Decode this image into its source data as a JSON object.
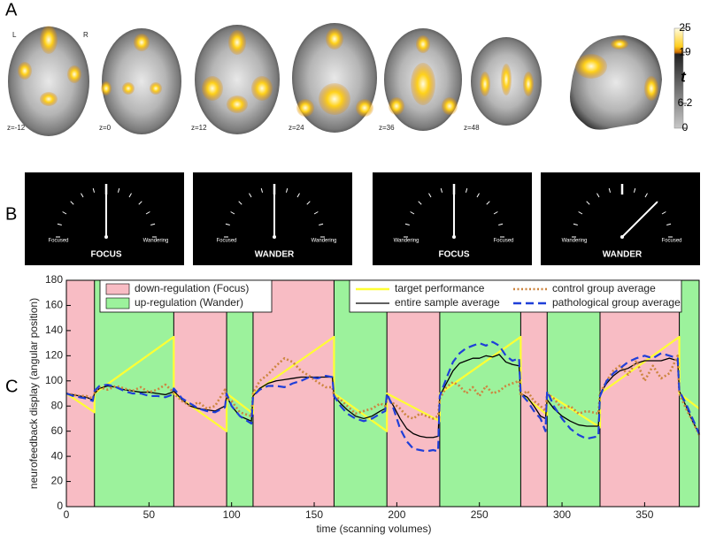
{
  "panels": {
    "a": {
      "label": "A",
      "left": "L",
      "right": "R",
      "slices": [
        "z=-12",
        "z=0",
        "z=12",
        "z=24",
        "z=36",
        "z=48"
      ],
      "colorbar": {
        "label": "t",
        "lim": [
          0,
          25
        ],
        "ticks": [
          25,
          19,
          6.2,
          0
        ]
      }
    },
    "b": {
      "label": "B",
      "gauges": [
        {
          "left": "Focused",
          "right": "Wandering",
          "state": "FOCUS"
        },
        {
          "left": "Focused",
          "right": "Wandering",
          "state": "WANDER"
        },
        {
          "left": "Wandering",
          "right": "Focused",
          "state": "FOCUS"
        },
        {
          "left": "Wandering",
          "right": "Focused",
          "state": "WANDER"
        }
      ]
    },
    "c": {
      "label": "C"
    }
  },
  "chart_data": {
    "type": "line",
    "xlabel": "time (scanning volumes)",
    "ylabel": "neurofeedback display (angular position)",
    "xlim": [
      0,
      383
    ],
    "ylim": [
      0,
      180
    ],
    "xticks": [
      0,
      50,
      100,
      150,
      200,
      250,
      300,
      350
    ],
    "yticks": [
      0,
      20,
      40,
      60,
      80,
      100,
      120,
      140,
      160,
      180
    ],
    "shading": [
      {
        "name": "down-regulation (Focus)",
        "color": "#f8bcc4",
        "spans": [
          [
            0,
            17
          ],
          [
            65,
            97
          ],
          [
            113,
            162
          ],
          [
            194,
            226
          ],
          [
            275,
            291
          ],
          [
            323,
            371
          ]
        ]
      },
      {
        "name": "up-regulation (Wander)",
        "color": "#9cf29c",
        "spans": [
          [
            17,
            65
          ],
          [
            97,
            113
          ],
          [
            162,
            194
          ],
          [
            226,
            275
          ],
          [
            291,
            323
          ],
          [
            371,
            383
          ]
        ]
      }
    ],
    "series": [
      {
        "name": "target performance",
        "color": "#ffff33",
        "line_style": "solid",
        "x": [
          0,
          17,
          17,
          65,
          65,
          97,
          97,
          113,
          113,
          162,
          162,
          194,
          194,
          226,
          226,
          275,
          275,
          291,
          291,
          323,
          323,
          371,
          371,
          383
        ],
        "values": [
          90,
          75,
          90,
          135,
          90,
          60,
          90,
          74,
          90,
          135,
          90,
          60,
          90,
          68,
          90,
          135,
          90,
          73,
          90,
          63,
          90,
          135,
          90,
          78
        ]
      },
      {
        "name": "entire sample average",
        "color": "#000000",
        "line_style": "solid",
        "x": [
          0,
          4,
          8,
          12,
          16,
          17,
          20,
          25,
          30,
          35,
          40,
          45,
          50,
          55,
          60,
          64,
          65,
          70,
          75,
          80,
          85,
          90,
          96,
          97,
          100,
          105,
          112,
          113,
          117,
          122,
          127,
          132,
          137,
          142,
          147,
          152,
          157,
          161,
          162,
          166,
          170,
          175,
          180,
          185,
          190,
          193,
          194,
          198,
          202,
          206,
          210,
          214,
          218,
          222,
          225,
          226,
          230,
          234,
          238,
          242,
          246,
          250,
          254,
          258,
          262,
          266,
          270,
          274,
          275,
          279,
          283,
          287,
          290,
          291,
          295,
          300,
          305,
          310,
          315,
          322,
          323,
          327,
          331,
          335,
          340,
          345,
          350,
          355,
          360,
          365,
          370,
          371,
          375,
          379,
          383
        ],
        "values": [
          90,
          89,
          88,
          87,
          85,
          90,
          94,
          96,
          95,
          93,
          92,
          91,
          91,
          90,
          89,
          91,
          92,
          85,
          80,
          78,
          77,
          76,
          80,
          88,
          80,
          72,
          68,
          88,
          94,
          98,
          100,
          101,
          102,
          103,
          103,
          103,
          103,
          103,
          88,
          82,
          77,
          72,
          70,
          72,
          76,
          78,
          89,
          80,
          70,
          62,
          58,
          56,
          55,
          55,
          56,
          88,
          98,
          108,
          114,
          116,
          118,
          118,
          120,
          119,
          121,
          115,
          113,
          112,
          90,
          87,
          80,
          72,
          70,
          85,
          78,
          72,
          68,
          65,
          64,
          64,
          90,
          98,
          104,
          108,
          110,
          114,
          116,
          116,
          116,
          118,
          116,
          92,
          80,
          68,
          58
        ]
      },
      {
        "name": "control group average",
        "color": "#cd853f",
        "line_style": "dotted",
        "x": [
          0,
          4,
          8,
          12,
          16,
          17,
          20,
          25,
          30,
          35,
          40,
          45,
          50,
          55,
          60,
          64,
          65,
          70,
          75,
          80,
          85,
          90,
          96,
          97,
          100,
          105,
          112,
          113,
          117,
          122,
          127,
          132,
          137,
          142,
          147,
          152,
          157,
          161,
          162,
          166,
          170,
          175,
          180,
          185,
          190,
          193,
          194,
          198,
          202,
          206,
          210,
          214,
          218,
          222,
          225,
          226,
          230,
          234,
          238,
          242,
          246,
          250,
          254,
          258,
          262,
          266,
          270,
          274,
          275,
          279,
          283,
          287,
          290,
          291,
          295,
          300,
          305,
          310,
          315,
          322,
          323,
          327,
          331,
          335,
          340,
          345,
          350,
          355,
          360,
          365,
          370,
          371,
          375,
          379,
          383
        ],
        "values": [
          90,
          89,
          88,
          88,
          86,
          90,
          95,
          93,
          96,
          94,
          92,
          95,
          91,
          93,
          97,
          92,
          90,
          84,
          80,
          83,
          78,
          80,
          93,
          86,
          84,
          75,
          72,
          90,
          100,
          105,
          112,
          118,
          115,
          108,
          104,
          99,
          95,
          95,
          88,
          85,
          80,
          74,
          76,
          78,
          82,
          80,
          86,
          82,
          78,
          72,
          70,
          74,
          72,
          70,
          72,
          86,
          95,
          99,
          96,
          90,
          95,
          88,
          96,
          90,
          92,
          96,
          98,
          100,
          88,
          92,
          84,
          80,
          76,
          90,
          86,
          78,
          80,
          74,
          76,
          74,
          90,
          100,
          108,
          112,
          105,
          116,
          100,
          112,
          102,
          106,
          120,
          90,
          78,
          68,
          57
        ]
      },
      {
        "name": "pathological group average",
        "color": "#1f3fd8",
        "line_style": "dashed",
        "x": [
          0,
          4,
          8,
          12,
          16,
          17,
          20,
          25,
          30,
          35,
          40,
          45,
          50,
          55,
          60,
          64,
          65,
          70,
          75,
          80,
          85,
          90,
          96,
          97,
          100,
          105,
          112,
          113,
          117,
          122,
          127,
          132,
          137,
          142,
          147,
          152,
          157,
          161,
          162,
          166,
          170,
          175,
          180,
          185,
          190,
          193,
          194,
          198,
          202,
          206,
          210,
          214,
          218,
          222,
          225,
          226,
          230,
          234,
          238,
          242,
          246,
          250,
          254,
          258,
          262,
          266,
          270,
          274,
          275,
          279,
          283,
          287,
          290,
          291,
          295,
          300,
          305,
          310,
          315,
          322,
          323,
          327,
          331,
          335,
          340,
          345,
          350,
          355,
          360,
          365,
          370,
          371,
          375,
          379,
          383
        ],
        "values": [
          90,
          88,
          87,
          86,
          84,
          92,
          96,
          97,
          95,
          92,
          90,
          90,
          88,
          88,
          87,
          89,
          94,
          86,
          82,
          78,
          76,
          75,
          79,
          90,
          80,
          72,
          66,
          88,
          93,
          96,
          96,
          95,
          98,
          100,
          103,
          102,
          104,
          103,
          88,
          80,
          74,
          70,
          68,
          70,
          74,
          76,
          90,
          78,
          62,
          52,
          46,
          45,
          44,
          45,
          44,
          88,
          102,
          115,
          122,
          126,
          128,
          130,
          128,
          131,
          128,
          120,
          116,
          118,
          90,
          84,
          76,
          70,
          60,
          92,
          80,
          70,
          62,
          57,
          54,
          56,
          88,
          100,
          106,
          110,
          115,
          118,
          120,
          118,
          122,
          120,
          118,
          92,
          82,
          70,
          58
        ]
      }
    ]
  }
}
